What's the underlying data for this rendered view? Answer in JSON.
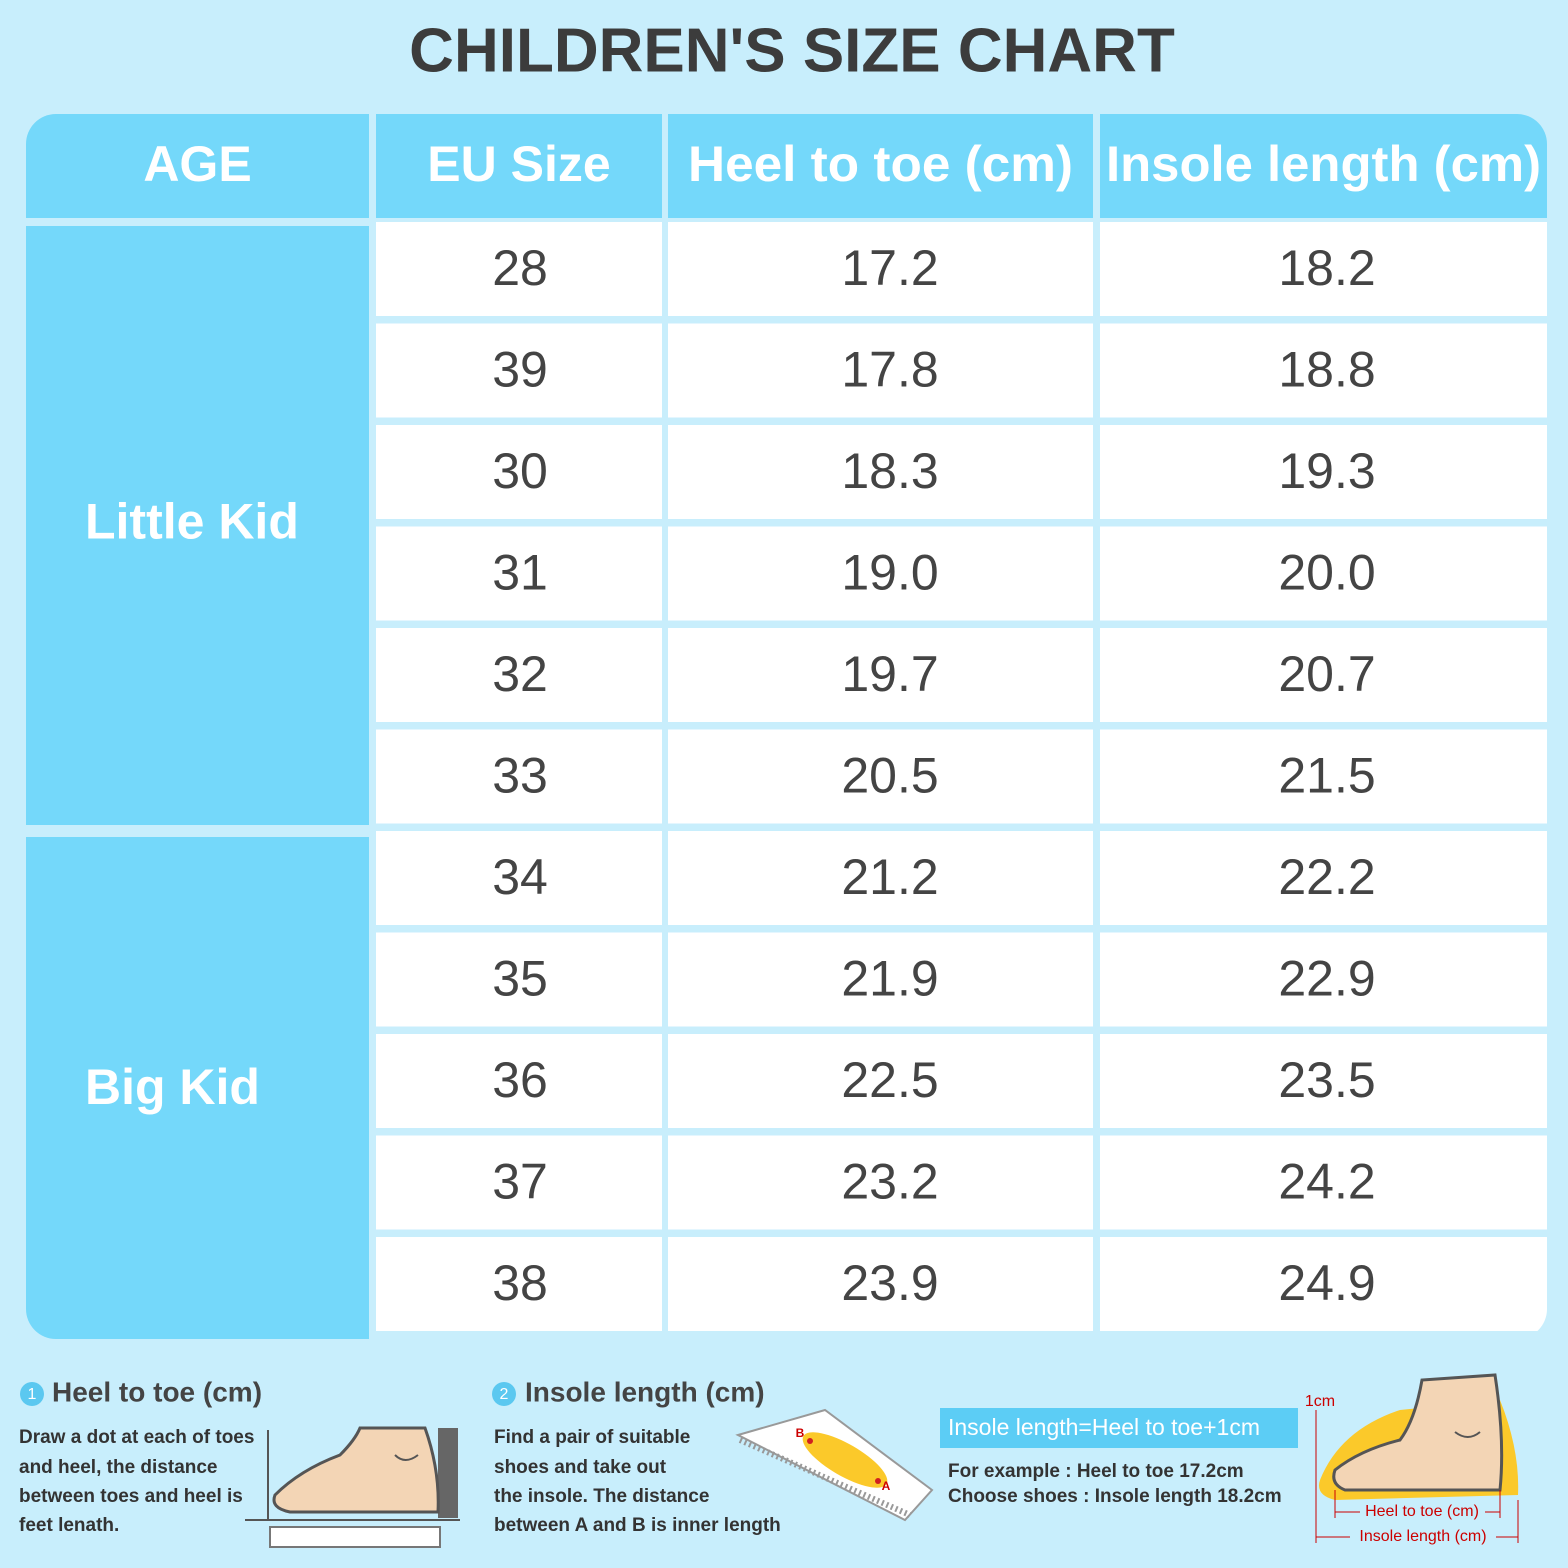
{
  "title": "CHILDREN'S SIZE CHART",
  "table": {
    "headers": [
      "AGE",
      "EU Size",
      "Heel to toe (cm)",
      "Insole length (cm)"
    ],
    "groups": [
      {
        "label": "Little Kid",
        "rows": [
          [
            "28",
            "17.2",
            "18.2"
          ],
          [
            "39",
            "17.8",
            "18.8"
          ],
          [
            "30",
            "18.3",
            "19.3"
          ],
          [
            "31",
            "19.0",
            "20.0"
          ],
          [
            "32",
            "19.7",
            "20.7"
          ],
          [
            "33",
            "20.5",
            "21.5"
          ]
        ]
      },
      {
        "label": "Big Kid",
        "rows": [
          [
            "34",
            "21.2",
            "22.2"
          ],
          [
            "35",
            "21.9",
            "22.9"
          ],
          [
            "36",
            "22.5",
            "23.5"
          ],
          [
            "37",
            "23.2",
            "24.2"
          ],
          [
            "38",
            "23.9",
            "24.9"
          ]
        ]
      }
    ]
  },
  "steps": [
    {
      "number": "1",
      "title": "Heel to toe (cm)",
      "lines": [
        "Draw a dot at each of toes",
        "and heel, the distance",
        "between toes and heel is",
        "feet lenath."
      ]
    },
    {
      "number": "2",
      "title": "Insole length (cm)",
      "lines": [
        "Find a pair of suitable",
        "shoes and take out",
        "the insole. The distance",
        "between A and B is inner length"
      ],
      "point_labels": [
        "B",
        "A"
      ]
    }
  ],
  "formula": {
    "text": "Insole length=Heel to toe+1cm",
    "lines": [
      "For example : Heel to toe 17.2cm",
      "Choose shoes : Insole length 18.2cm"
    ],
    "diagram_labels": [
      "1cm",
      "Heel to toe (cm)",
      "Insole length (cm)"
    ]
  }
}
